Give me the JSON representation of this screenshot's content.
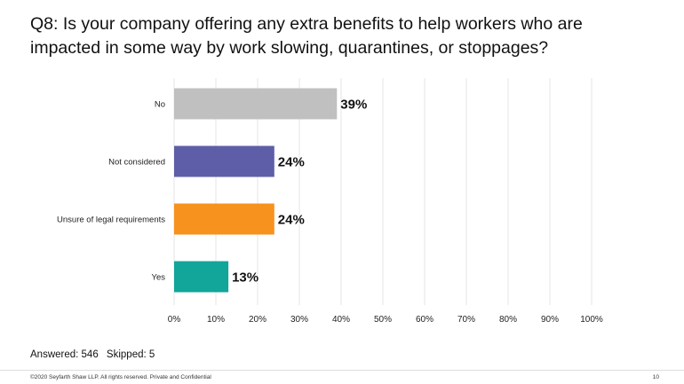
{
  "title": {
    "line1": "Q8: Is your company offering any extra benefits to help workers who are",
    "line2": "impacted in some way by work slowing, quarantines, or stoppages?"
  },
  "chart_data": {
    "type": "bar",
    "orientation": "horizontal",
    "title": "Q8: Is your company offering any extra benefits to help workers who are impacted in some way by work slowing, quarantines, or stoppages?",
    "categories": [
      "No",
      "Not considered",
      "Unsure of legal requirements",
      "Yes"
    ],
    "values": [
      39,
      24,
      24,
      13
    ],
    "value_labels": [
      "39%",
      "24%",
      "24%",
      "13%"
    ],
    "colors": [
      "#c0c0c0",
      "#5e5ea8",
      "#f7921e",
      "#12a59a"
    ],
    "xlim": [
      0,
      100
    ],
    "xticks": [
      "0%",
      "10%",
      "20%",
      "30%",
      "40%",
      "50%",
      "60%",
      "70%",
      "80%",
      "90%",
      "100%"
    ],
    "grid": "vertical",
    "legend": "none"
  },
  "summary": {
    "answered": "Answered: 546",
    "skipped": "Skipped: 5"
  },
  "footer": {
    "copyright": "©2020 Seyfarth Shaw LLP. All rights reserved. Private and Confidential",
    "page_number": "10"
  }
}
